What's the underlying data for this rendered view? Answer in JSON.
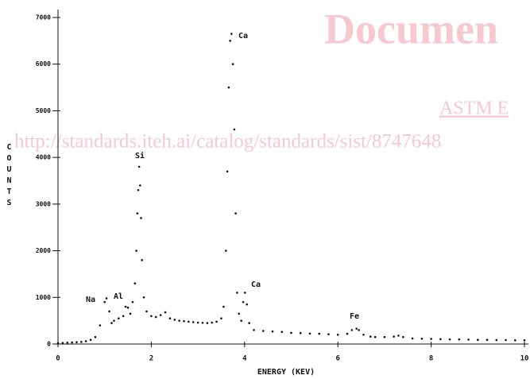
{
  "chart_data": {
    "type": "scatter",
    "xlabel": "ENERGY (KEV)",
    "ylabel": "COUNTS",
    "x": [
      0,
      0.1,
      0.2,
      0.3,
      0.4,
      0.5,
      0.6,
      0.7,
      0.8,
      0.9,
      1.0,
      1.04,
      1.1,
      1.15,
      1.2,
      1.3,
      1.4,
      1.45,
      1.5,
      1.55,
      1.6,
      1.65,
      1.68,
      1.7,
      1.72,
      1.74,
      1.76,
      1.78,
      1.8,
      1.84,
      1.9,
      2.0,
      2.1,
      2.2,
      2.3,
      2.4,
      2.5,
      2.6,
      2.7,
      2.8,
      2.9,
      3.0,
      3.1,
      3.2,
      3.3,
      3.4,
      3.5,
      3.55,
      3.6,
      3.63,
      3.66,
      3.69,
      3.72,
      3.75,
      3.78,
      3.81,
      3.84,
      3.88,
      3.93,
      3.97,
      4.01,
      4.05,
      4.1,
      4.2,
      4.4,
      4.6,
      4.8,
      5.0,
      5.2,
      5.4,
      5.6,
      5.8,
      6.0,
      6.2,
      6.3,
      6.4,
      6.45,
      6.55,
      6.7,
      6.8,
      7.0,
      7.2,
      7.3,
      7.4,
      7.6,
      7.8,
      8.0,
      8.2,
      8.4,
      8.6,
      8.8,
      9.0,
      9.2,
      9.4,
      9.6,
      9.8,
      10.0
    ],
    "values": [
      20,
      25,
      30,
      35,
      40,
      45,
      60,
      90,
      150,
      400,
      900,
      980,
      700,
      450,
      500,
      550,
      600,
      800,
      780,
      650,
      900,
      1300,
      2000,
      2800,
      3300,
      3800,
      3400,
      2700,
      1800,
      1000,
      700,
      600,
      580,
      620,
      680,
      550,
      520,
      500,
      490,
      480,
      470,
      460,
      455,
      450,
      460,
      480,
      550,
      800,
      2000,
      3700,
      5500,
      6500,
      6650,
      6000,
      4600,
      2800,
      1100,
      650,
      500,
      900,
      1100,
      850,
      450,
      300,
      280,
      270,
      260,
      240,
      235,
      225,
      220,
      210,
      200,
      220,
      300,
      330,
      300,
      200,
      160,
      150,
      150,
      160,
      180,
      150,
      120,
      115,
      110,
      105,
      100,
      100,
      95,
      90,
      90,
      85,
      85,
      80,
      80
    ],
    "color": "#111111",
    "xlim": [
      0,
      10
    ],
    "xticks": [
      0,
      2,
      4,
      6,
      8,
      10
    ],
    "ylim": [
      0,
      7000
    ],
    "yticks": [
      0,
      1000,
      2000,
      3000,
      4000,
      5000,
      6000,
      7000
    ],
    "annotations": [
      "Na",
      "Al",
      "Si",
      "Ca",
      "Ca",
      "Fe"
    ]
  },
  "watermarks": [
    "Documen",
    "ASTM E",
    "http://standards.iteh.ai/catalog/standards/sist/8747648"
  ]
}
